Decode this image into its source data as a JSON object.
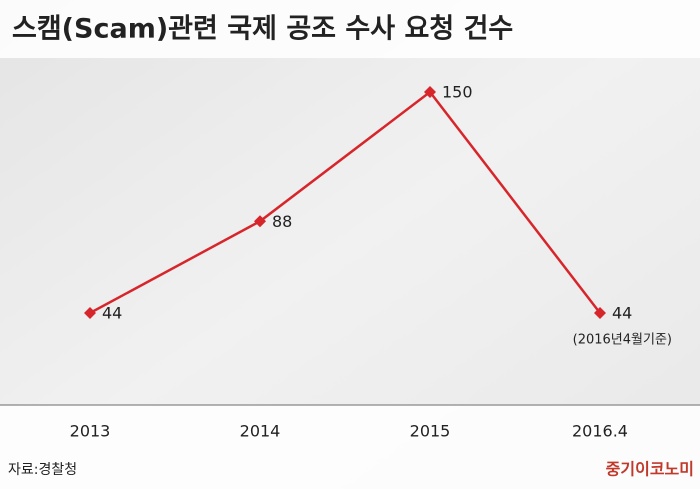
{
  "chart_data": {
    "type": "line",
    "title": "스캠(Scam)관련 국제 공조 수사 요청 건수",
    "categories": [
      "2013",
      "2014",
      "2015",
      "2016.4"
    ],
    "values": [
      44,
      88,
      150,
      44
    ],
    "color": "#d7262b",
    "note": "(2016년4월기준)",
    "source": "자료:경찰청",
    "brand": "중기이코노미"
  }
}
